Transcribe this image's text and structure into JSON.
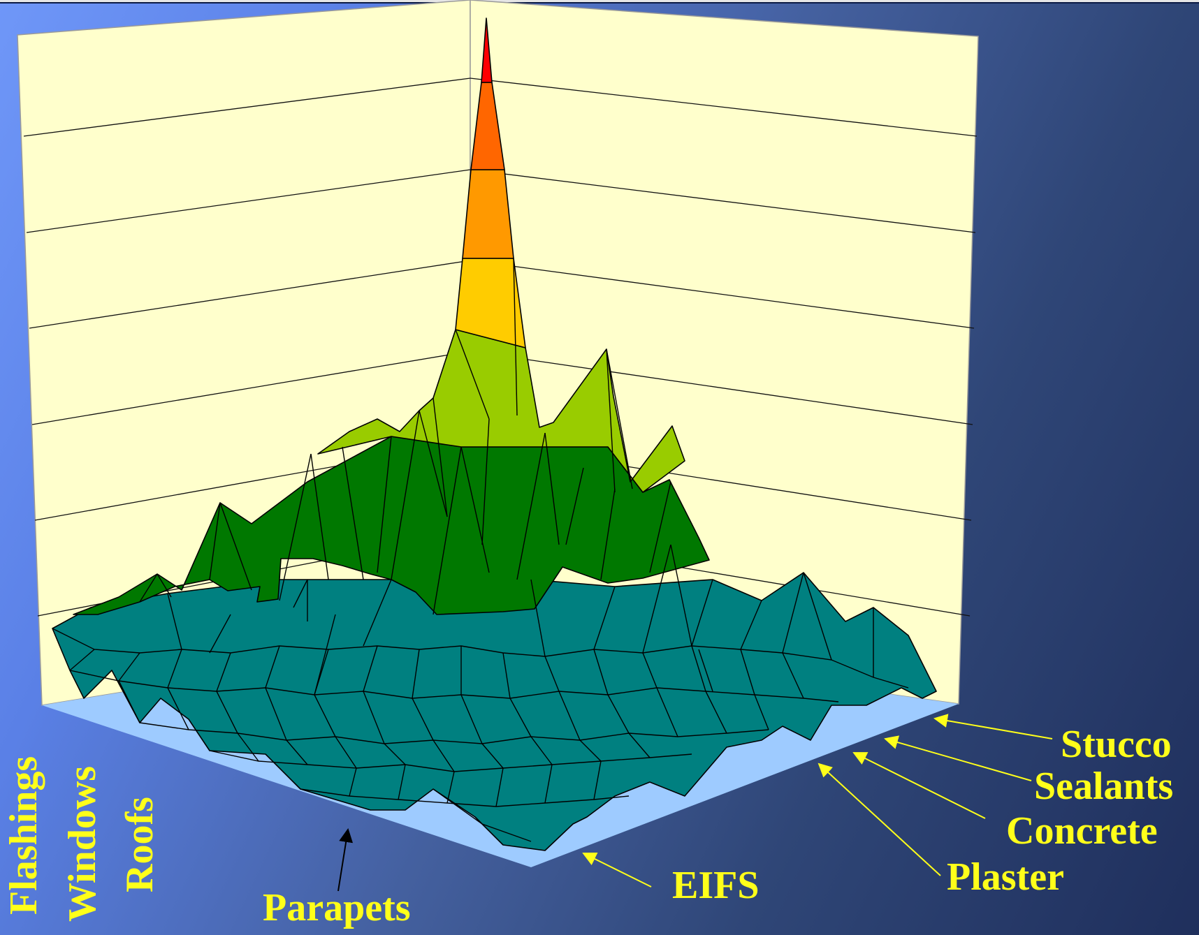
{
  "chart_data": {
    "type": "surface",
    "z_series_labels": [
      "Stucco",
      "Sealants",
      "Concrete",
      "Plaster",
      "EIFS"
    ],
    "x_series_labels": [
      "Flashings",
      "Windows",
      "Roofs",
      "Parapets"
    ],
    "colors": {
      "floor": "#9ecbff",
      "walls": "#ffffcc",
      "bands": [
        "#008080",
        "#007800",
        "#99cc00",
        "#ffcc00",
        "#ff9900",
        "#ff6600",
        "#ff0000"
      ],
      "label": "#ffff1a"
    },
    "grid": true,
    "peak_position": "back-center",
    "title": "",
    "xlabel": "",
    "ylabel": ""
  }
}
